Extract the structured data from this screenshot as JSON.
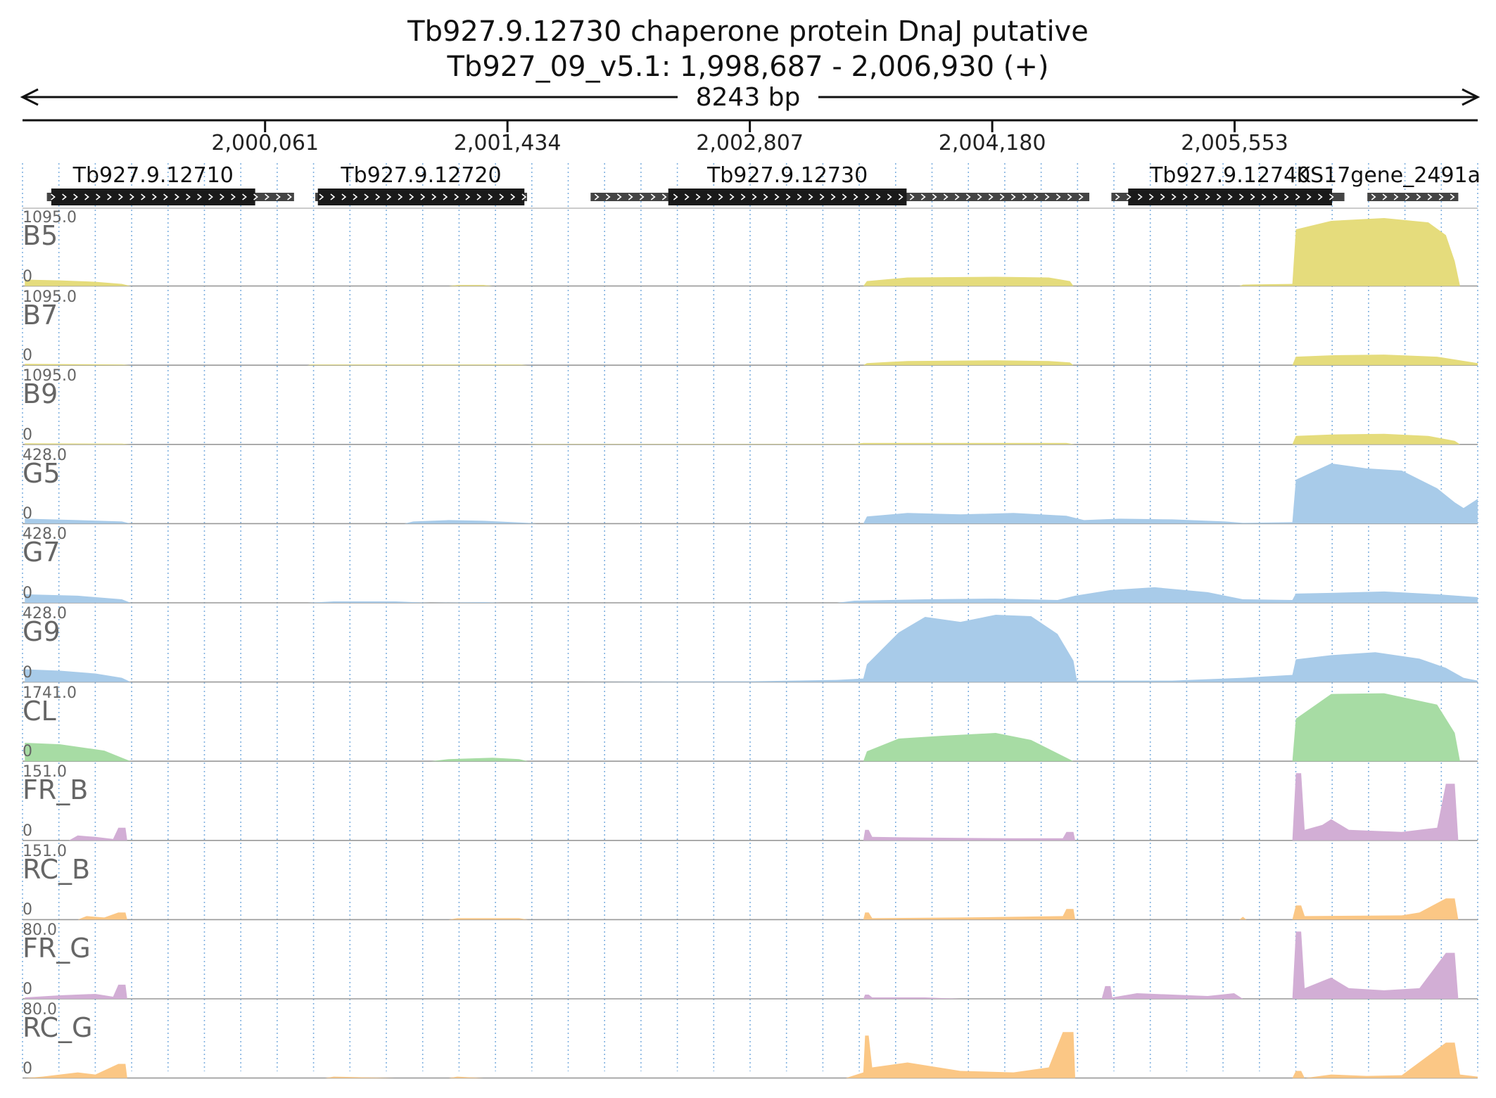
{
  "header": {
    "title_line1": "Tb927.9.12730  chaperone protein DnaJ  putative",
    "title_line2": "Tb927_09_v5.1: 1,998,687 - 2,006,930 (+)",
    "span_label": "8243 bp"
  },
  "axis": {
    "start": 1998687,
    "end": 2006930,
    "ticks": [
      {
        "pos": 2000061,
        "label": "2,000,061"
      },
      {
        "pos": 2001434,
        "label": "2,001,434"
      },
      {
        "pos": 2002807,
        "label": "2,002,807"
      },
      {
        "pos": 2004180,
        "label": "2,004,180"
      },
      {
        "pos": 2005553,
        "label": "2,005,553"
      }
    ]
  },
  "genes": [
    {
      "label": "Tb927.9.12710",
      "utr": [
        1998825,
        2000225
      ],
      "cds": [
        1998850,
        2000005
      ]
    },
    {
      "label": "Tb927.9.12720",
      "utr": [
        2000345,
        2001545
      ],
      "cds": [
        2000360,
        2001530
      ]
    },
    {
      "label": "Tb927.9.12730",
      "utr": [
        2001905,
        2004730
      ],
      "cds": [
        2002345,
        2003695
      ]
    },
    {
      "label": "Tb927.9.12740",
      "utr": [
        2004855,
        2006175
      ],
      "cds": [
        2004950,
        2006105
      ]
    },
    {
      "label": "KS17gene_2491a",
      "utr": [
        2006305,
        2006820
      ],
      "cds": null
    }
  ],
  "tracks": [
    {
      "name": "B5",
      "max": "1095.0",
      "zero": "0",
      "color": "#e5dc7c",
      "profile": [
        [
          1998700,
          0.09
        ],
        [
          1998900,
          0.08
        ],
        [
          1999100,
          0.06
        ],
        [
          1999250,
          0.03
        ],
        [
          1999300,
          0
        ],
        [
          2001100,
          0
        ],
        [
          2001150,
          0.015
        ],
        [
          2001300,
          0.015
        ],
        [
          2001350,
          0
        ],
        [
          2003450,
          0
        ],
        [
          2003470,
          0.07
        ],
        [
          2003700,
          0.12
        ],
        [
          2004200,
          0.13
        ],
        [
          2004500,
          0.12
        ],
        [
          2004620,
          0.07
        ],
        [
          2004640,
          0
        ],
        [
          2005580,
          0
        ],
        [
          2005600,
          0.02
        ],
        [
          2005880,
          0.03
        ],
        [
          2005900,
          0.8
        ],
        [
          2006100,
          0.92
        ],
        [
          2006400,
          0.96
        ],
        [
          2006650,
          0.9
        ],
        [
          2006750,
          0.72
        ],
        [
          2006800,
          0.35
        ],
        [
          2006830,
          0
        ]
      ]
    },
    {
      "name": "B7",
      "max": "1095.0",
      "zero": "0",
      "color": "#e5dc7c",
      "profile": [
        [
          1998700,
          0.02
        ],
        [
          1999250,
          0.01
        ],
        [
          1999300,
          0
        ],
        [
          2000300,
          0
        ],
        [
          2000320,
          0.01
        ],
        [
          2001500,
          0.01
        ],
        [
          2001550,
          0
        ],
        [
          2003450,
          0
        ],
        [
          2003470,
          0.03
        ],
        [
          2003700,
          0.06
        ],
        [
          2004200,
          0.07
        ],
        [
          2004500,
          0.06
        ],
        [
          2004620,
          0.04
        ],
        [
          2004640,
          0
        ],
        [
          2005880,
          0
        ],
        [
          2005900,
          0.12
        ],
        [
          2006100,
          0.14
        ],
        [
          2006400,
          0.15
        ],
        [
          2006700,
          0.12
        ],
        [
          2006930,
          0.03
        ]
      ]
    },
    {
      "name": "B9",
      "max": "1095.0",
      "zero": "0",
      "color": "#e5dc7c",
      "profile": [
        [
          1998700,
          0.015
        ],
        [
          1999250,
          0.01
        ],
        [
          1999300,
          0
        ],
        [
          2001550,
          0
        ],
        [
          2001600,
          0.005
        ],
        [
          2003400,
          0.005
        ],
        [
          2003450,
          0.02
        ],
        [
          2004600,
          0.02
        ],
        [
          2004650,
          0
        ],
        [
          2005880,
          0
        ],
        [
          2005900,
          0.12
        ],
        [
          2006100,
          0.14
        ],
        [
          2006400,
          0.15
        ],
        [
          2006650,
          0.12
        ],
        [
          2006800,
          0.05
        ],
        [
          2006830,
          0
        ]
      ]
    },
    {
      "name": "G5",
      "max": "428.0",
      "zero": "0",
      "color": "#a8cbe9",
      "profile": [
        [
          1998700,
          0.07
        ],
        [
          1999000,
          0.05
        ],
        [
          1999250,
          0.03
        ],
        [
          1999300,
          0
        ],
        [
          2000850,
          0
        ],
        [
          2000900,
          0.03
        ],
        [
          2001100,
          0.05
        ],
        [
          2001300,
          0.04
        ],
        [
          2001550,
          0.01
        ],
        [
          2001600,
          0
        ],
        [
          2003450,
          0
        ],
        [
          2003470,
          0.1
        ],
        [
          2003700,
          0.15
        ],
        [
          2004000,
          0.13
        ],
        [
          2004300,
          0.15
        ],
        [
          2004600,
          0.11
        ],
        [
          2004700,
          0.05
        ],
        [
          2004900,
          0.07
        ],
        [
          2005200,
          0.06
        ],
        [
          2005500,
          0.03
        ],
        [
          2005600,
          0.01
        ],
        [
          2005880,
          0.02
        ],
        [
          2005900,
          0.62
        ],
        [
          2006100,
          0.85
        ],
        [
          2006300,
          0.78
        ],
        [
          2006500,
          0.75
        ],
        [
          2006700,
          0.5
        ],
        [
          2006800,
          0.3
        ],
        [
          2006850,
          0.22
        ],
        [
          2006930,
          0.35
        ]
      ]
    },
    {
      "name": "G7",
      "max": "428.0",
      "zero": "0",
      "color": "#a8cbe9",
      "profile": [
        [
          1998700,
          0.12
        ],
        [
          1999000,
          0.1
        ],
        [
          1999250,
          0.05
        ],
        [
          1999300,
          0
        ],
        [
          2000300,
          0
        ],
        [
          2000450,
          0.02
        ],
        [
          2000800,
          0.02
        ],
        [
          2001000,
          0
        ],
        [
          2001300,
          0.01
        ],
        [
          2001400,
          0
        ],
        [
          2003300,
          0
        ],
        [
          2003400,
          0.03
        ],
        [
          2003800,
          0.05
        ],
        [
          2004200,
          0.06
        ],
        [
          2004550,
          0.04
        ],
        [
          2004650,
          0.1
        ],
        [
          2004850,
          0.18
        ],
        [
          2005100,
          0.22
        ],
        [
          2005400,
          0.15
        ],
        [
          2005600,
          0.05
        ],
        [
          2005880,
          0.04
        ],
        [
          2005900,
          0.13
        ],
        [
          2006100,
          0.14
        ],
        [
          2006400,
          0.16
        ],
        [
          2006700,
          0.12
        ],
        [
          2006930,
          0.08
        ]
      ]
    },
    {
      "name": "G9",
      "max": "428.0",
      "zero": "0",
      "color": "#a8cbe9",
      "profile": [
        [
          1998700,
          0.18
        ],
        [
          1998900,
          0.16
        ],
        [
          1999100,
          0.12
        ],
        [
          1999250,
          0.06
        ],
        [
          1999300,
          0
        ],
        [
          2001800,
          0
        ],
        [
          2002800,
          0.01
        ],
        [
          2003300,
          0.03
        ],
        [
          2003450,
          0.05
        ],
        [
          2003470,
          0.25
        ],
        [
          2003650,
          0.7
        ],
        [
          2003800,
          0.92
        ],
        [
          2004000,
          0.85
        ],
        [
          2004200,
          0.95
        ],
        [
          2004400,
          0.93
        ],
        [
          2004550,
          0.68
        ],
        [
          2004640,
          0.3
        ],
        [
          2004660,
          0.02
        ],
        [
          2005200,
          0.02
        ],
        [
          2005600,
          0.06
        ],
        [
          2005880,
          0.1
        ],
        [
          2005900,
          0.32
        ],
        [
          2006100,
          0.38
        ],
        [
          2006350,
          0.42
        ],
        [
          2006600,
          0.33
        ],
        [
          2006750,
          0.2
        ],
        [
          2006850,
          0.06
        ],
        [
          2006930,
          0.02
        ]
      ]
    },
    {
      "name": "CL",
      "max": "1741.0",
      "zero": "0",
      "color": "#a7dca4",
      "profile": [
        [
          1998700,
          0.26
        ],
        [
          1998900,
          0.24
        ],
        [
          1999150,
          0.15
        ],
        [
          1999250,
          0.05
        ],
        [
          1999300,
          0
        ],
        [
          2001000,
          0
        ],
        [
          2001100,
          0.03
        ],
        [
          2001350,
          0.05
        ],
        [
          2001500,
          0.03
        ],
        [
          2001550,
          0
        ],
        [
          2003450,
          0
        ],
        [
          2003470,
          0.14
        ],
        [
          2003650,
          0.32
        ],
        [
          2003900,
          0.36
        ],
        [
          2004200,
          0.4
        ],
        [
          2004400,
          0.3
        ],
        [
          2004600,
          0.05
        ],
        [
          2004640,
          0
        ],
        [
          2005880,
          0
        ],
        [
          2005900,
          0.6
        ],
        [
          2006100,
          0.95
        ],
        [
          2006400,
          0.96
        ],
        [
          2006700,
          0.8
        ],
        [
          2006800,
          0.4
        ],
        [
          2006830,
          0
        ]
      ]
    },
    {
      "name": "FR_B",
      "max": "151.0",
      "zero": "0",
      "color": "#d2aed5",
      "profile": [
        [
          1998700,
          0
        ],
        [
          1998950,
          0
        ],
        [
          1999000,
          0.07
        ],
        [
          1999100,
          0.05
        ],
        [
          1999200,
          0.02
        ],
        [
          1999230,
          0.18
        ],
        [
          1999270,
          0.18
        ],
        [
          1999280,
          0
        ],
        [
          2003450,
          0
        ],
        [
          2003460,
          0.15
        ],
        [
          2003480,
          0.15
        ],
        [
          2003500,
          0.05
        ],
        [
          2003800,
          0.04
        ],
        [
          2004300,
          0.03
        ],
        [
          2004580,
          0.03
        ],
        [
          2004600,
          0.12
        ],
        [
          2004640,
          0.12
        ],
        [
          2004650,
          0
        ],
        [
          2005880,
          0
        ],
        [
          2005900,
          0.95
        ],
        [
          2005930,
          0.95
        ],
        [
          2005950,
          0.15
        ],
        [
          2006050,
          0.22
        ],
        [
          2006100,
          0.3
        ],
        [
          2006200,
          0.15
        ],
        [
          2006500,
          0.12
        ],
        [
          2006700,
          0.18
        ],
        [
          2006750,
          0.8
        ],
        [
          2006800,
          0.8
        ],
        [
          2006820,
          0
        ]
      ]
    },
    {
      "name": "RC_B",
      "max": "151.0",
      "zero": "0",
      "color": "#fbc785",
      "profile": [
        [
          1998700,
          0
        ],
        [
          1999000,
          0
        ],
        [
          1999050,
          0.05
        ],
        [
          1999150,
          0.03
        ],
        [
          1999230,
          0.1
        ],
        [
          1999270,
          0.1
        ],
        [
          1999280,
          0
        ],
        [
          2001100,
          0
        ],
        [
          2001150,
          0.02
        ],
        [
          2001500,
          0.02
        ],
        [
          2001550,
          0
        ],
        [
          2003450,
          0
        ],
        [
          2003460,
          0.1
        ],
        [
          2003480,
          0.1
        ],
        [
          2003500,
          0.02
        ],
        [
          2004000,
          0.03
        ],
        [
          2004580,
          0.05
        ],
        [
          2004600,
          0.15
        ],
        [
          2004640,
          0.15
        ],
        [
          2004650,
          0
        ],
        [
          2005580,
          0
        ],
        [
          2005600,
          0.04
        ],
        [
          2005620,
          0
        ],
        [
          2005880,
          0
        ],
        [
          2005900,
          0.2
        ],
        [
          2005930,
          0.2
        ],
        [
          2005950,
          0.05
        ],
        [
          2006500,
          0.06
        ],
        [
          2006600,
          0.1
        ],
        [
          2006750,
          0.3
        ],
        [
          2006800,
          0.3
        ],
        [
          2006820,
          0
        ]
      ]
    },
    {
      "name": "FR_G",
      "max": "80.0",
      "zero": "0",
      "color": "#d2aed5",
      "profile": [
        [
          1998700,
          0.02
        ],
        [
          1998900,
          0.05
        ],
        [
          1999100,
          0.07
        ],
        [
          1999200,
          0.03
        ],
        [
          1999230,
          0.2
        ],
        [
          1999270,
          0.2
        ],
        [
          1999280,
          0
        ],
        [
          2003450,
          0
        ],
        [
          2003460,
          0.06
        ],
        [
          2003480,
          0.06
        ],
        [
          2003500,
          0.02
        ],
        [
          2003800,
          0.02
        ],
        [
          2004000,
          0
        ],
        [
          2004800,
          0
        ],
        [
          2004820,
          0.18
        ],
        [
          2004850,
          0.18
        ],
        [
          2004860,
          0.02
        ],
        [
          2005000,
          0.08
        ],
        [
          2005200,
          0.06
        ],
        [
          2005400,
          0.04
        ],
        [
          2005550,
          0.08
        ],
        [
          2005600,
          0
        ],
        [
          2005880,
          0
        ],
        [
          2005900,
          0.95
        ],
        [
          2005930,
          0.95
        ],
        [
          2005950,
          0.15
        ],
        [
          2006050,
          0.25
        ],
        [
          2006100,
          0.3
        ],
        [
          2006200,
          0.15
        ],
        [
          2006400,
          0.12
        ],
        [
          2006600,
          0.15
        ],
        [
          2006750,
          0.65
        ],
        [
          2006800,
          0.65
        ],
        [
          2006820,
          0
        ]
      ]
    },
    {
      "name": "RC_G",
      "max": "80.0",
      "zero": "0",
      "color": "#fbc785",
      "profile": [
        [
          1998700,
          0
        ],
        [
          1998800,
          0.02
        ],
        [
          1999000,
          0.08
        ],
        [
          1999100,
          0.05
        ],
        [
          1999230,
          0.2
        ],
        [
          1999270,
          0.2
        ],
        [
          1999280,
          0
        ],
        [
          2000400,
          0
        ],
        [
          2000450,
          0.02
        ],
        [
          2000800,
          0
        ],
        [
          2001100,
          0
        ],
        [
          2001150,
          0.02
        ],
        [
          2001300,
          0
        ],
        [
          2003350,
          0
        ],
        [
          2003450,
          0.08
        ],
        [
          2003460,
          0.6
        ],
        [
          2003480,
          0.6
        ],
        [
          2003500,
          0.15
        ],
        [
          2003700,
          0.22
        ],
        [
          2004000,
          0.1
        ],
        [
          2004300,
          0.08
        ],
        [
          2004500,
          0.15
        ],
        [
          2004580,
          0.65
        ],
        [
          2004640,
          0.65
        ],
        [
          2004650,
          0
        ],
        [
          2005880,
          0
        ],
        [
          2005900,
          0.1
        ],
        [
          2005930,
          0.1
        ],
        [
          2005950,
          0
        ],
        [
          2006100,
          0.05
        ],
        [
          2006300,
          0.03
        ],
        [
          2006500,
          0.04
        ],
        [
          2006750,
          0.5
        ],
        [
          2006800,
          0.5
        ],
        [
          2006830,
          0.05
        ],
        [
          2006930,
          0.02
        ]
      ]
    }
  ]
}
